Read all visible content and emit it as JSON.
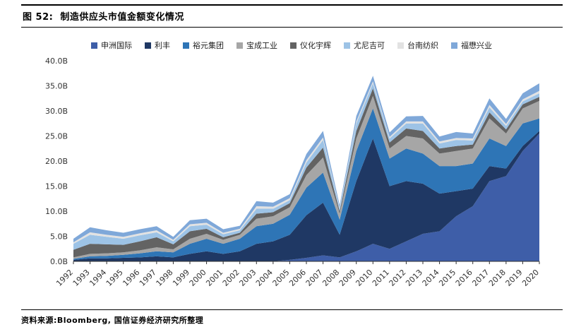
{
  "header": {
    "figure_label": "图 52:",
    "title": "制造供应头市值金额变化情况"
  },
  "footer": {
    "source": "资料来源:Bloomberg, 国信证券经济研究所整理"
  },
  "chart_data": {
    "type": "area",
    "stacked": true,
    "title": "制造供应头市值金额变化情况",
    "xlabel": "",
    "ylabel": "",
    "ylim": [
      0,
      40
    ],
    "yticks": [
      "0.0B",
      "5.0B",
      "10.0B",
      "15.0B",
      "20.0B",
      "25.0B",
      "30.0B",
      "35.0B",
      "40.0B"
    ],
    "legend_position": "top",
    "grid": false,
    "x": [
      1992,
      1993,
      1994,
      1995,
      1996,
      1997,
      1998,
      1999,
      2000,
      2001,
      2002,
      2003,
      2004,
      2005,
      2006,
      2007,
      2008,
      2009,
      2010,
      2011,
      2012,
      2013,
      2014,
      2015,
      2016,
      2017,
      2018,
      2019,
      2020
    ],
    "series": [
      {
        "name": "申洲国际",
        "color": "#3E5EA8",
        "values": [
          0,
          0,
          0,
          0,
          0,
          0,
          0,
          0,
          0,
          0,
          0,
          0,
          0,
          0.3,
          0.7,
          1.2,
          0.8,
          2.0,
          3.5,
          2.5,
          4.0,
          5.5,
          6.0,
          9.0,
          11.0,
          16.0,
          17.0,
          22.0,
          25.5
        ]
      },
      {
        "name": "利丰",
        "color": "#1F3864",
        "values": [
          0.3,
          0.6,
          0.6,
          0.7,
          0.8,
          1.0,
          0.8,
          1.5,
          2.0,
          1.5,
          2.0,
          3.5,
          4.0,
          5.0,
          8.5,
          10.5,
          4.5,
          14.0,
          21.0,
          12.5,
          12.0,
          10.0,
          7.5,
          5.0,
          3.5,
          3.0,
          1.5,
          1.0,
          0.5
        ]
      },
      {
        "name": "裕元集团",
        "color": "#2E75B6",
        "values": [
          0.2,
          0.4,
          0.5,
          0.6,
          0.8,
          1.0,
          1.0,
          2.0,
          2.5,
          2.0,
          2.5,
          3.5,
          3.5,
          4.0,
          5.5,
          6.0,
          3.0,
          6.0,
          6.0,
          5.5,
          6.5,
          6.0,
          5.5,
          5.0,
          5.0,
          5.5,
          4.5,
          4.5,
          2.5
        ]
      },
      {
        "name": "宝成工业",
        "color": "#A6A6A6",
        "values": [
          0.3,
          0.5,
          0.5,
          0.5,
          0.6,
          0.8,
          0.6,
          1.0,
          1.0,
          0.8,
          0.8,
          1.5,
          1.5,
          1.5,
          2.5,
          3.0,
          1.2,
          2.5,
          2.5,
          2.0,
          2.5,
          3.0,
          2.5,
          3.0,
          3.0,
          4.0,
          2.5,
          3.0,
          3.5
        ]
      },
      {
        "name": "仪化宇辉",
        "color": "#636363",
        "values": [
          1.5,
          2.0,
          1.8,
          1.5,
          1.8,
          2.0,
          1.0,
          1.5,
          1.0,
          0.5,
          0.4,
          1.0,
          0.8,
          0.8,
          1.5,
          2.0,
          0.5,
          1.5,
          1.5,
          1.2,
          1.5,
          1.5,
          1.0,
          1.0,
          0.8,
          1.2,
          0.8,
          0.8,
          0.8
        ]
      },
      {
        "name": "尤尼吉可",
        "color": "#9DC3E6",
        "values": [
          1.2,
          1.8,
          1.5,
          1.2,
          1.2,
          1.0,
          0.6,
          1.0,
          0.8,
          0.6,
          0.5,
          1.0,
          0.7,
          0.6,
          1.0,
          1.5,
          0.5,
          1.5,
          1.0,
          0.8,
          1.0,
          1.5,
          1.0,
          1.2,
          0.8,
          1.0,
          0.7,
          0.6,
          0.7
        ]
      },
      {
        "name": "台南纺织",
        "color": "#E2E2E2",
        "values": [
          0.3,
          0.5,
          0.4,
          0.4,
          0.4,
          0.4,
          0.3,
          0.4,
          0.4,
          0.3,
          0.3,
          0.5,
          0.4,
          0.4,
          0.5,
          0.5,
          0.2,
          0.4,
          0.4,
          0.3,
          0.4,
          0.4,
          0.4,
          0.4,
          0.4,
          0.5,
          0.4,
          0.4,
          0.5
        ]
      },
      {
        "name": "福懋兴业",
        "color": "#7FA8D9",
        "values": [
          0.7,
          1.0,
          0.9,
          0.8,
          0.8,
          0.8,
          0.6,
          0.8,
          0.8,
          0.7,
          0.6,
          1.0,
          0.8,
          0.8,
          1.2,
          1.3,
          0.5,
          1.1,
          1.1,
          0.9,
          1.0,
          1.1,
          1.0,
          1.2,
          1.0,
          1.3,
          1.0,
          1.2,
          1.5
        ]
      }
    ]
  }
}
